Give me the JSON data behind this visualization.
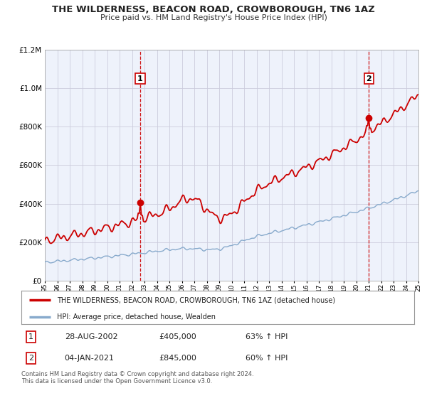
{
  "title": "THE WILDERNESS, BEACON ROAD, CROWBOROUGH, TN6 1AZ",
  "subtitle": "Price paid vs. HM Land Registry's House Price Index (HPI)",
  "bg_color": "#ffffff",
  "plot_bg_color": "#eef2fb",
  "grid_color": "#ccccdd",
  "red_line_color": "#cc0000",
  "blue_line_color": "#88aacc",
  "sale1_year": 2002.66,
  "sale1_price": 405000,
  "sale1_label": "1",
  "sale2_year": 2021.01,
  "sale2_price": 845000,
  "sale2_label": "2",
  "xmin": 1995,
  "xmax": 2025,
  "ymin": 0,
  "ymax": 1200000,
  "legend_red": "THE WILDERNESS, BEACON ROAD, CROWBOROUGH, TN6 1AZ (detached house)",
  "legend_blue": "HPI: Average price, detached house, Wealden",
  "note1_num": "1",
  "note1_date": "28-AUG-2002",
  "note1_price": "£405,000",
  "note1_hpi": "63% ↑ HPI",
  "note2_num": "2",
  "note2_date": "04-JAN-2021",
  "note2_price": "£845,000",
  "note2_hpi": "60% ↑ HPI",
  "footer": "Contains HM Land Registry data © Crown copyright and database right 2024.\nThis data is licensed under the Open Government Licence v3.0."
}
